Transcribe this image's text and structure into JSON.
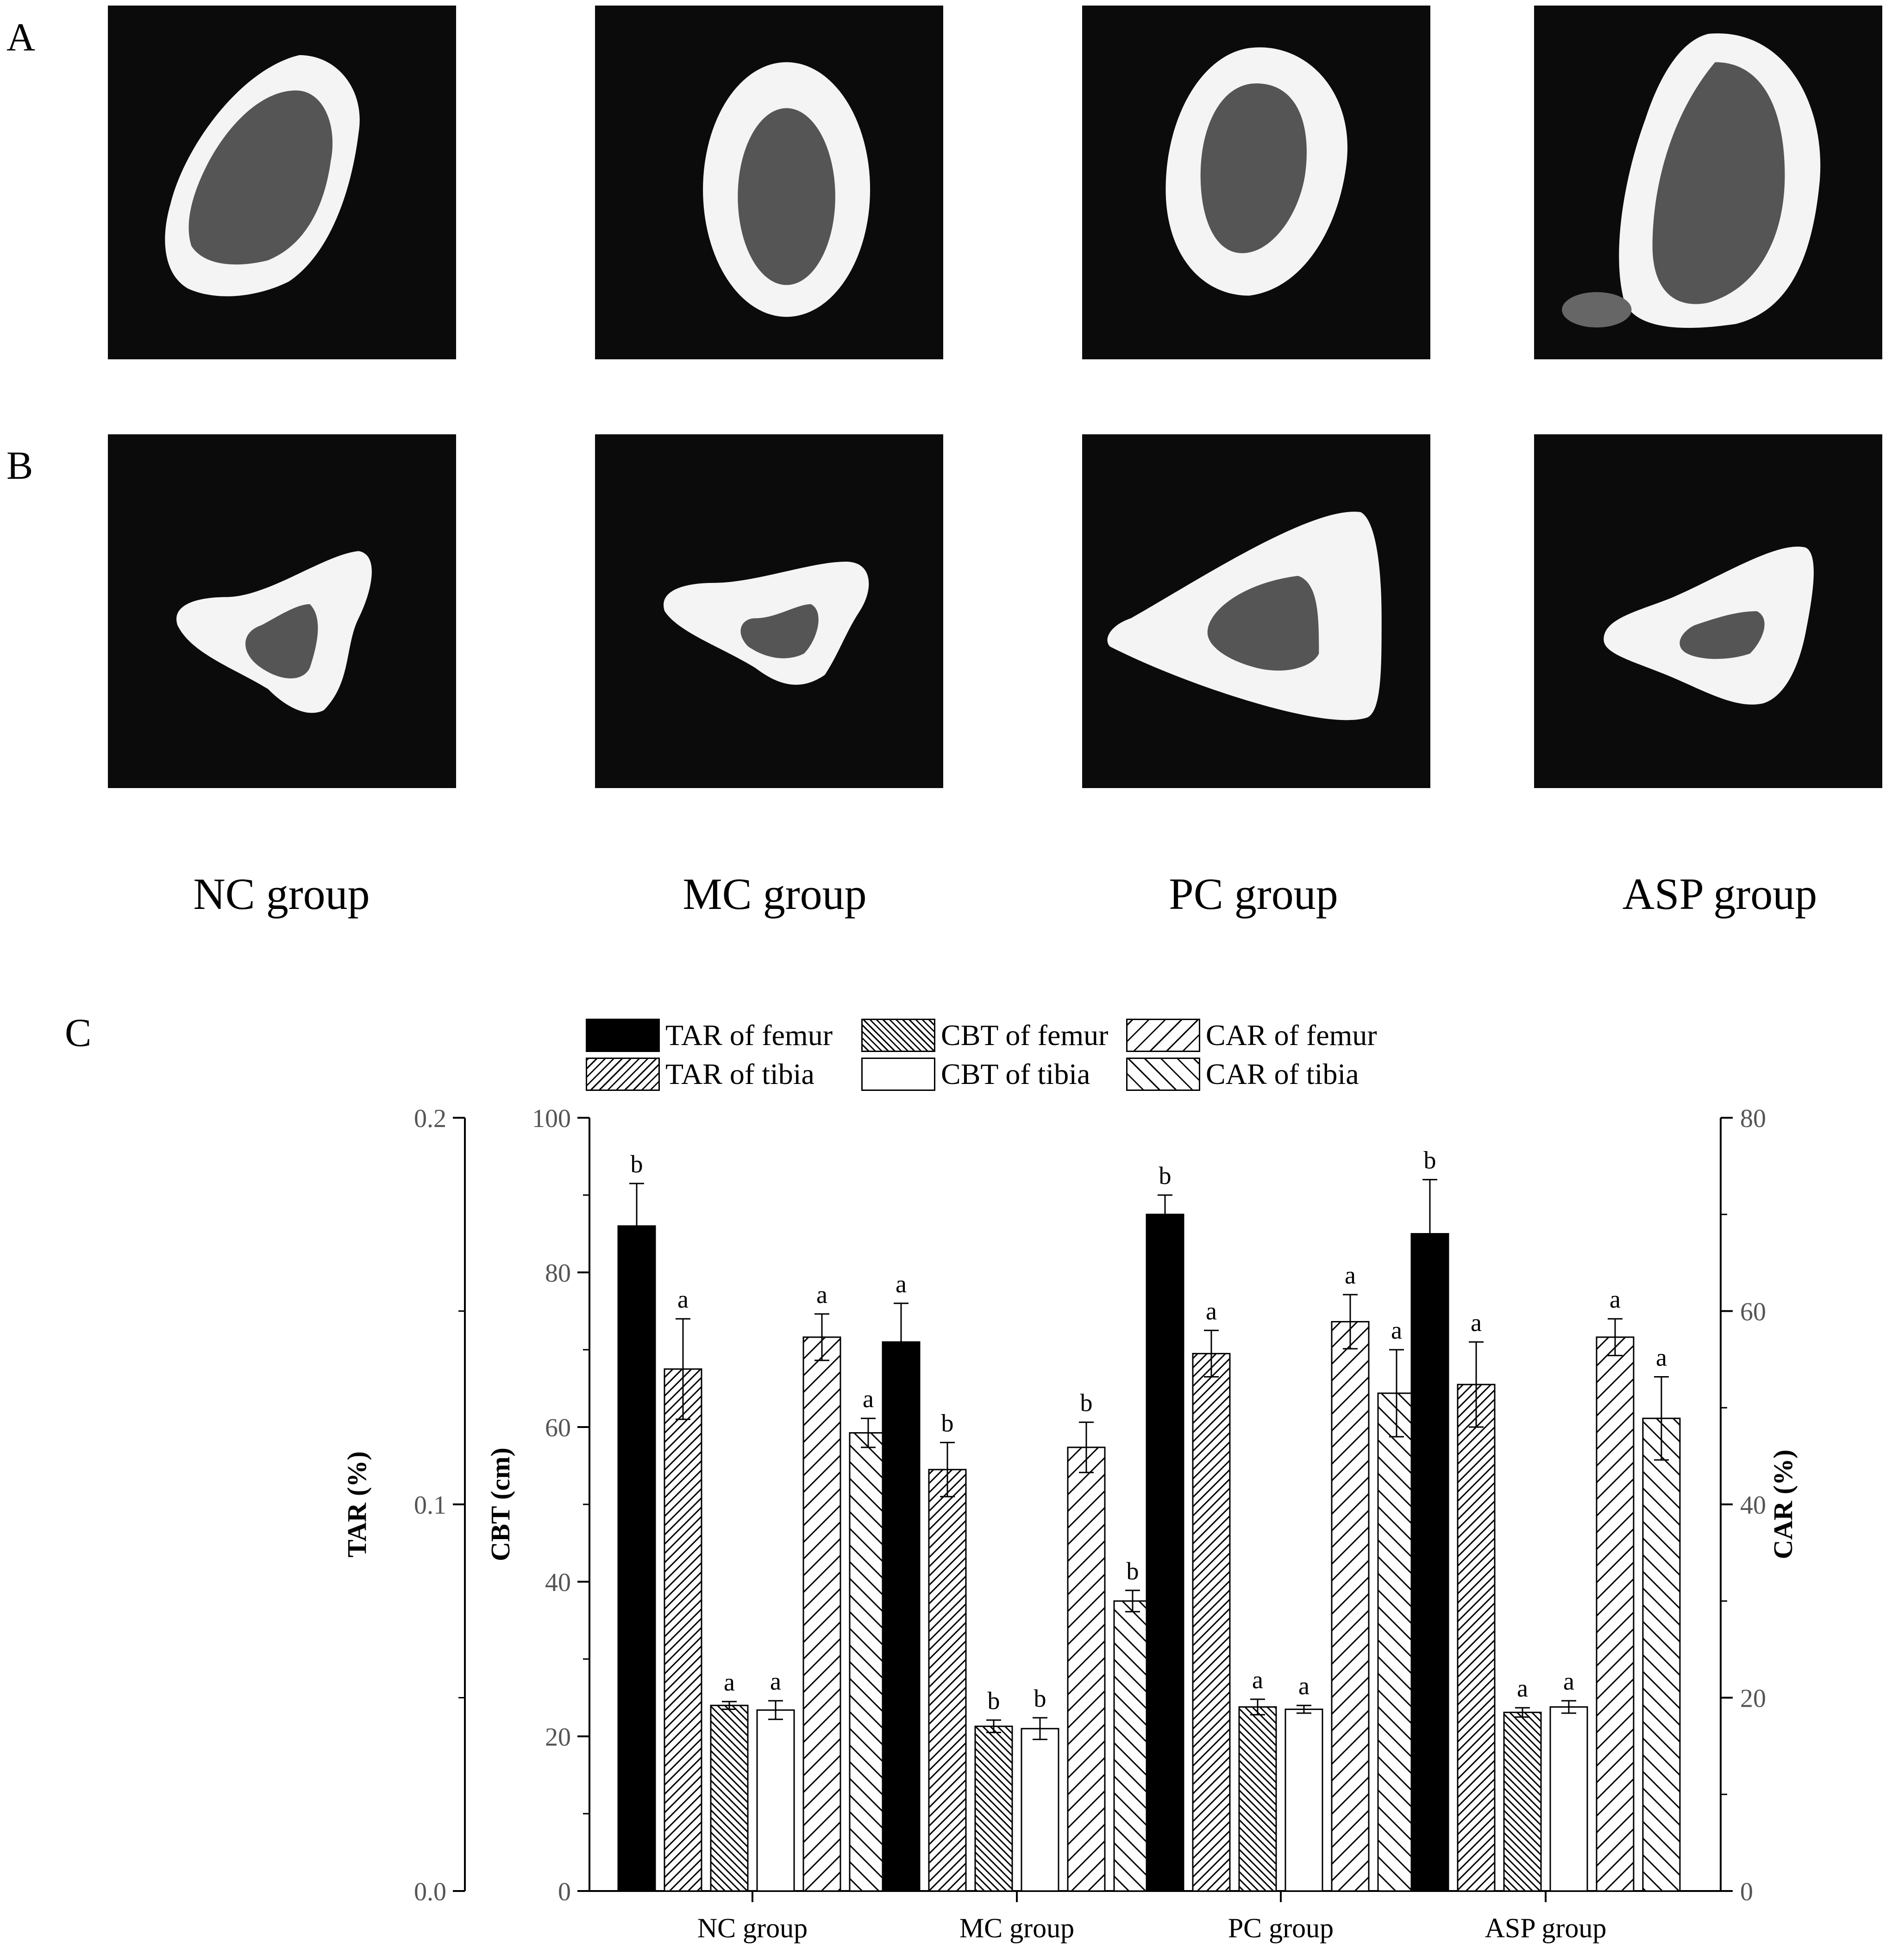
{
  "panels": {
    "a_label": "A",
    "b_label": "B",
    "c_label": "C"
  },
  "groups": [
    "NC group",
    "MC group",
    "PC group",
    "ASP group"
  ],
  "legend": [
    {
      "label": "TAR of femur",
      "pattern": "solid"
    },
    {
      "label": "CBT of femur",
      "pattern": "diag-back"
    },
    {
      "label": "CAR of femur",
      "pattern": "diag-fwd"
    },
    {
      "label": "TAR of tibia",
      "pattern": "diag-fwd-dense"
    },
    {
      "label": "CBT of tibia",
      "pattern": "empty"
    },
    {
      "label": "CAR of tibia",
      "pattern": "diag-back-wide"
    }
  ],
  "chart_data": {
    "type": "bar",
    "categories": [
      "NC group",
      "MC group",
      "PC group",
      "ASP group"
    ],
    "axes": {
      "left_tar": {
        "label": "TAR (%)",
        "range": [
          0.0,
          0.2
        ],
        "ticks": [
          "0.0",
          "0.1",
          "0.2"
        ]
      },
      "left_cbt": {
        "label": "CBT (cm)",
        "range": [
          0,
          100
        ],
        "ticks": [
          "0",
          "20",
          "40",
          "60",
          "80",
          "100"
        ]
      },
      "right_car": {
        "label": "CAR (%)",
        "range": [
          0,
          80
        ],
        "ticks": [
          "0",
          "20",
          "40",
          "60",
          "80"
        ]
      }
    },
    "series": [
      {
        "name": "TAR of femur",
        "axis": "left_tar",
        "values": [
          0.172,
          0.142,
          0.175,
          0.17
        ],
        "errors": [
          0.011,
          0.01,
          0.005,
          0.014
        ],
        "letters": [
          "b",
          "a",
          "b",
          "b"
        ]
      },
      {
        "name": "TAR of tibia",
        "axis": "left_tar",
        "values": [
          0.135,
          0.109,
          0.139,
          0.131
        ],
        "errors": [
          0.013,
          0.007,
          0.006,
          0.011
        ],
        "letters": [
          "a",
          "b",
          "a",
          "a"
        ]
      },
      {
        "name": "CBT of femur",
        "axis": "left_cbt",
        "values": [
          24.0,
          21.3,
          23.8,
          23.1
        ],
        "errors": [
          0.5,
          0.8,
          1.0,
          0.6
        ],
        "letters": [
          "a",
          "b",
          "a",
          "a"
        ]
      },
      {
        "name": "CBT of tibia",
        "axis": "left_cbt",
        "values": [
          23.4,
          21.0,
          23.5,
          23.8
        ],
        "errors": [
          1.2,
          1.4,
          0.5,
          0.8
        ],
        "letters": [
          "a",
          "b",
          "a",
          "a"
        ]
      },
      {
        "name": "CAR of femur",
        "axis": "right_car",
        "values": [
          57.3,
          45.9,
          58.9,
          57.3
        ],
        "errors": [
          2.4,
          2.6,
          2.8,
          1.9
        ],
        "letters": [
          "a",
          "b",
          "a",
          "a"
        ]
      },
      {
        "name": "CAR of tibia",
        "axis": "right_car",
        "values": [
          47.4,
          30.0,
          51.5,
          48.9
        ],
        "errors": [
          1.5,
          1.1,
          4.5,
          4.3
        ],
        "letters": [
          "a",
          "b",
          "a",
          "a"
        ]
      }
    ]
  }
}
